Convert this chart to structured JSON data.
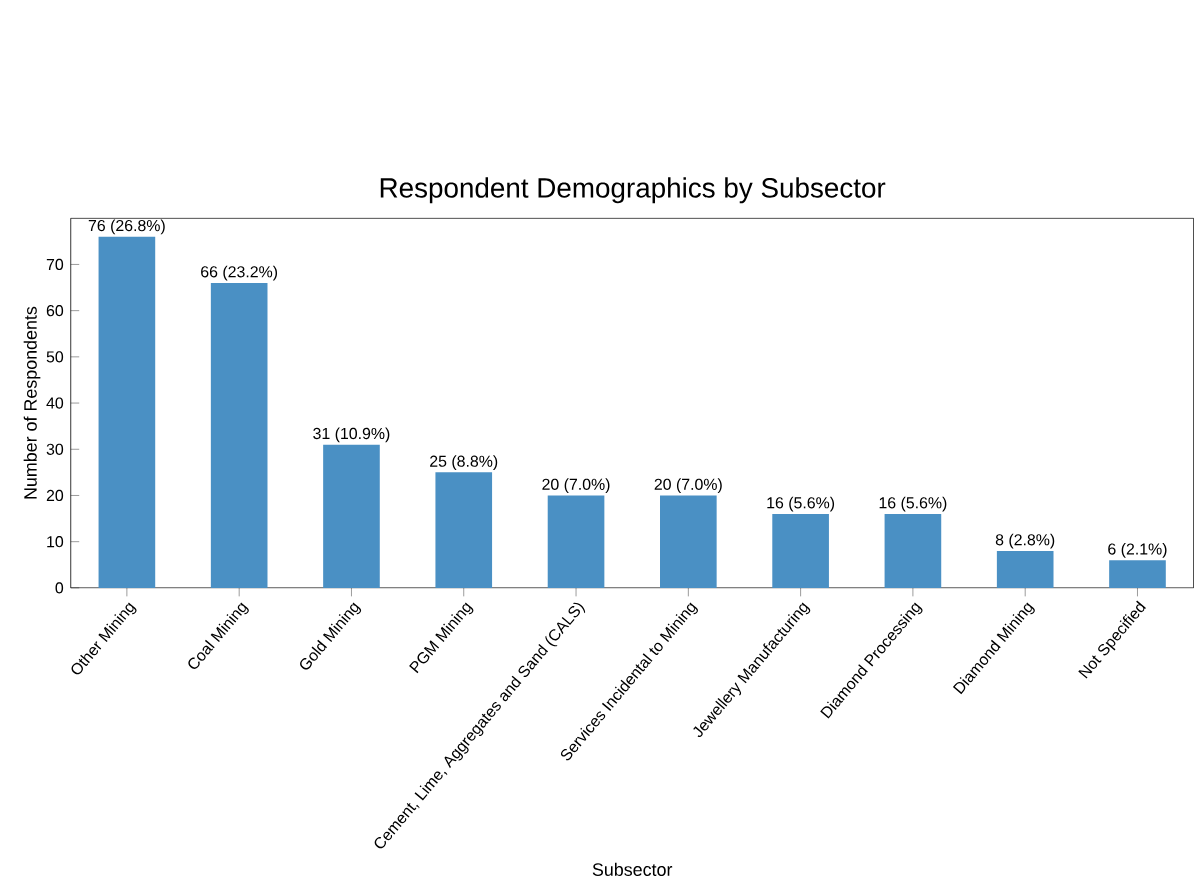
{
  "chart_data": {
    "type": "bar",
    "title": "Respondent Demographics by Subsector",
    "xlabel": "Subsector",
    "ylabel": "Number of Respondents",
    "categories": [
      "Other Mining",
      "Coal Mining",
      "Gold Mining",
      "PGM Mining",
      "Cement, Lime, Aggregates and Sand (CALS)",
      "Services Incidental to Mining",
      "Jewellery Manufacturing",
      "Diamond Processing",
      "Diamond Mining",
      "Not Specified"
    ],
    "values": [
      76,
      66,
      31,
      25,
      20,
      20,
      16,
      16,
      8,
      6
    ],
    "value_labels": [
      "76 (26.8%)",
      "66 (23.2%)",
      "31 (10.9%)",
      "25 (8.8%)",
      "20 (7.0%)",
      "20 (7.0%)",
      "16 (5.6%)",
      "16 (5.6%)",
      "8 (2.8%)",
      "6 (2.1%)"
    ],
    "color": "#4a90c4",
    "ylim": [
      0,
      80
    ],
    "yticks": [
      0,
      10,
      20,
      30,
      40,
      50,
      60,
      70
    ]
  }
}
